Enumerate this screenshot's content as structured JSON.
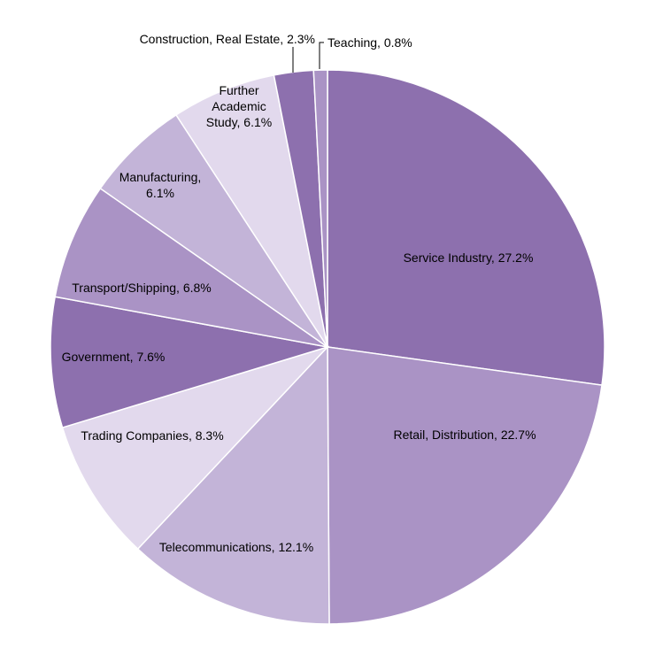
{
  "chart_data": {
    "type": "pie",
    "title": "",
    "start_angle_deg": 90,
    "direction": "clockwise",
    "show_legend": false,
    "slices": [
      {
        "label": "Service Industry",
        "value": 27.2,
        "display": "27.2%",
        "color": "#8d70ae",
        "label_lines": [
          "Service Industry,  27.2%"
        ],
        "label_anchor": "middle",
        "label_inside": true
      },
      {
        "label": "Retail, Distribution",
        "value": 22.7,
        "display": "22.7%",
        "color": "#aa93c5",
        "label_lines": [
          "Retail,  Distribution, 22.7%"
        ],
        "label_anchor": "middle",
        "label_inside": true
      },
      {
        "label": "Telecommunications",
        "value": 12.1,
        "display": "12.1%",
        "color": "#c3b4d8",
        "label_lines": [
          "Telecommunications,  12.1%"
        ],
        "label_anchor": "middle",
        "label_inside": true
      },
      {
        "label": "Trading Companies",
        "value": 8.3,
        "display": "8.3%",
        "color": "#e2d9ed",
        "label_lines": [
          "Trading  Companies, 8.3%"
        ],
        "label_anchor": "middle",
        "label_inside": true
      },
      {
        "label": "Government",
        "value": 7.6,
        "display": "7.6%",
        "color": "#8d70ae",
        "label_lines": [
          "Government,  7.6%"
        ],
        "label_anchor": "middle",
        "label_inside": true
      },
      {
        "label": "Transport/Shipping",
        "value": 6.8,
        "display": "6.8%",
        "color": "#aa93c5",
        "label_lines": [
          "Transport/Shipping,  6.8%"
        ],
        "label_anchor": "middle",
        "label_inside": true
      },
      {
        "label": "Manufacturing",
        "value": 6.1,
        "display": "6.1%",
        "color": "#c3b4d8",
        "label_lines": [
          "Manufacturing,",
          "6.1%"
        ],
        "label_anchor": "middle",
        "label_inside": true
      },
      {
        "label": "Further Academic Study",
        "value": 6.1,
        "display": "6.1%",
        "color": "#e2d9ed",
        "label_lines": [
          "Further",
          "Academic",
          "Study,  6.1%"
        ],
        "label_anchor": "middle",
        "label_inside": true
      },
      {
        "label": "Construction,  Real Estate",
        "value": 2.3,
        "display": "2.3%",
        "color": "#8d70ae",
        "label_lines": [
          "Construction,  Real Estate, 2.3%"
        ],
        "label_anchor": "end",
        "label_inside": false
      },
      {
        "label": "Teaching",
        "value": 0.8,
        "display": "0.8%",
        "color": "#aa93c5",
        "label_lines": [
          "Teaching,  0.8%"
        ],
        "label_anchor": "start",
        "label_inside": false
      }
    ]
  }
}
